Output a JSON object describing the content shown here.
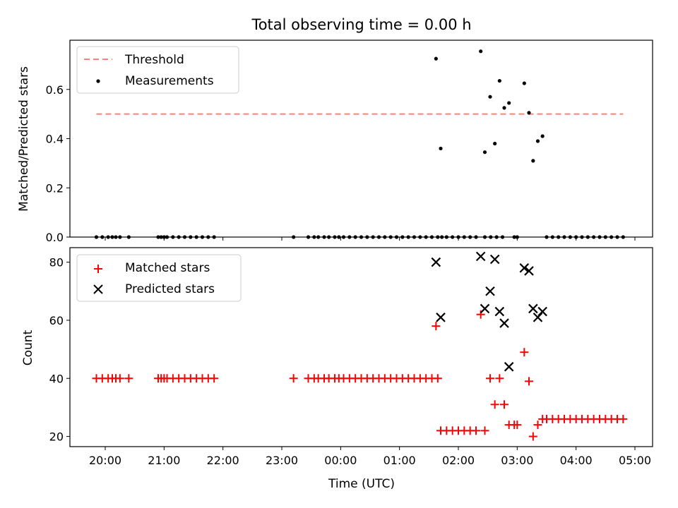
{
  "chart_data": [
    {
      "type": "scatter",
      "title": "Total observing time = 0.00 h",
      "xlabel": "",
      "ylabel": "Matched/Predicted stars",
      "ylim": [
        0,
        0.8
      ],
      "yticks": [
        0.0,
        0.2,
        0.4,
        0.6
      ],
      "ytick_labels": [
        "0.0",
        "0.2",
        "0.4",
        "0.6"
      ],
      "xlim": [
        -0.6,
        9.3
      ],
      "x_unit": "hours after 20:00 UTC",
      "xticks": [
        0,
        1,
        2,
        3,
        4,
        5,
        6,
        7,
        8,
        9
      ],
      "xtick_labels_shown": false,
      "legend": {
        "position": "upper left"
      },
      "threshold": {
        "name": "Threshold",
        "value": 0.5,
        "x_range": [
          -0.15,
          8.8
        ],
        "color": "#ff7f7f",
        "style": "dashed"
      },
      "series": [
        {
          "name": "Measurements",
          "color": "#000000",
          "marker": "dot",
          "x": [
            -0.15,
            -0.05,
            0.05,
            0.12,
            0.18,
            0.25,
            0.4,
            0.9,
            0.95,
            1.0,
            1.05,
            1.15,
            1.25,
            1.35,
            1.45,
            1.55,
            1.65,
            1.75,
            1.85,
            3.2,
            3.45,
            3.55,
            3.62,
            3.72,
            3.8,
            3.9,
            3.97,
            4.05,
            4.15,
            4.25,
            4.35,
            4.45,
            4.55,
            4.65,
            4.75,
            4.85,
            4.95,
            5.05,
            5.15,
            5.25,
            5.35,
            5.45,
            5.55,
            5.65,
            5.72,
            5.8,
            5.9,
            6.0,
            6.1,
            6.2,
            6.3,
            6.45,
            6.55,
            6.65,
            6.75,
            6.95,
            7.0,
            7.5,
            7.6,
            7.7,
            7.8,
            7.9,
            8.0,
            8.1,
            8.2,
            8.3,
            8.4,
            8.5,
            8.6,
            8.7,
            8.8,
            5.62,
            5.7,
            6.38,
            6.45,
            6.54,
            6.62,
            6.7,
            6.78,
            6.86,
            7.12,
            7.2,
            7.27,
            7.35,
            7.43
          ],
          "y": [
            0,
            0,
            0,
            0,
            0,
            0,
            0,
            0,
            0,
            0,
            0,
            0,
            0,
            0,
            0,
            0,
            0,
            0,
            0,
            0,
            0,
            0,
            0,
            0,
            0,
            0,
            0,
            0,
            0,
            0,
            0,
            0,
            0,
            0,
            0,
            0,
            0,
            0,
            0,
            0,
            0,
            0,
            0,
            0,
            0,
            0,
            0,
            0,
            0,
            0,
            0,
            0,
            0,
            0,
            0,
            0,
            0,
            0,
            0,
            0,
            0,
            0,
            0,
            0,
            0,
            0,
            0,
            0,
            0,
            0,
            0,
            0.725,
            0.36,
            0.755,
            0.345,
            0.57,
            0.38,
            0.635,
            0.525,
            0.545,
            0.625,
            0.505,
            0.31,
            0.39,
            0.41
          ]
        }
      ]
    },
    {
      "type": "scatter",
      "title": "",
      "xlabel": "Time (UTC)",
      "ylabel": "Count",
      "ylim": [
        16.5,
        85
      ],
      "yticks": [
        20,
        40,
        60,
        80
      ],
      "ytick_labels": [
        "20",
        "40",
        "60",
        "80"
      ],
      "xlim": [
        -0.6,
        9.3
      ],
      "x_unit": "hours after 20:00 UTC",
      "xticks": [
        0,
        1,
        2,
        3,
        4,
        5,
        6,
        7,
        8,
        9
      ],
      "xtick_labels": [
        "20:00",
        "21:00",
        "22:00",
        "23:00",
        "00:00",
        "01:00",
        "02:00",
        "03:00",
        "04:00",
        "05:00"
      ],
      "legend": {
        "position": "upper left"
      },
      "series": [
        {
          "name": "Matched stars",
          "color": "#ff0000",
          "marker": "plus",
          "x": [
            -0.15,
            -0.05,
            0.05,
            0.12,
            0.18,
            0.25,
            0.4,
            0.9,
            0.95,
            1.0,
            1.05,
            1.15,
            1.25,
            1.35,
            1.45,
            1.55,
            1.65,
            1.75,
            1.85,
            3.2,
            3.45,
            3.55,
            3.62,
            3.72,
            3.8,
            3.9,
            3.97,
            4.05,
            4.15,
            4.25,
            4.35,
            4.45,
            4.55,
            4.65,
            4.75,
            4.85,
            4.95,
            5.05,
            5.15,
            5.25,
            5.35,
            5.45,
            5.55,
            5.65,
            5.62,
            5.7,
            5.8,
            5.9,
            6.0,
            6.1,
            6.2,
            6.3,
            6.38,
            6.45,
            6.54,
            6.62,
            6.7,
            6.78,
            6.86,
            6.95,
            7.0,
            7.12,
            7.2,
            7.27,
            7.35,
            7.43,
            7.5,
            7.6,
            7.7,
            7.8,
            7.9,
            8.0,
            8.1,
            8.2,
            8.3,
            8.4,
            8.5,
            8.6,
            8.7,
            8.8
          ],
          "y": [
            40,
            40,
            40,
            40,
            40,
            40,
            40,
            40,
            40,
            40,
            40,
            40,
            40,
            40,
            40,
            40,
            40,
            40,
            40,
            40,
            40,
            40,
            40,
            40,
            40,
            40,
            40,
            40,
            40,
            40,
            40,
            40,
            40,
            40,
            40,
            40,
            40,
            40,
            40,
            40,
            40,
            40,
            40,
            40,
            58,
            22,
            22,
            22,
            22,
            22,
            22,
            22,
            62,
            22,
            40,
            31,
            40,
            31,
            24,
            24,
            24,
            49,
            39,
            20,
            24,
            26,
            26,
            26,
            26,
            26,
            26,
            26,
            26,
            26,
            26,
            26,
            26,
            26,
            26,
            26
          ]
        },
        {
          "name": "Predicted stars",
          "color": "#000000",
          "marker": "x",
          "x": [
            5.62,
            5.7,
            6.38,
            6.45,
            6.54,
            6.62,
            6.7,
            6.78,
            6.86,
            7.12,
            7.2,
            7.27,
            7.35,
            7.43
          ],
          "y": [
            80,
            61,
            82,
            64,
            70,
            81,
            63,
            59,
            44,
            78,
            77,
            64,
            61,
            63
          ]
        }
      ]
    }
  ]
}
